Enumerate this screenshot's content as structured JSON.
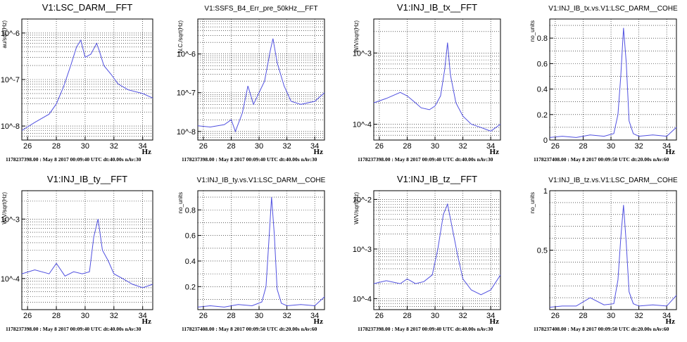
{
  "colors": {
    "trace": "#5050e0",
    "grid": "#000000",
    "frame": "#000000"
  },
  "chart_data": [
    {
      "type": "line",
      "title": "V1:LSC_DARM__FFT",
      "ylabel": "au/sqrt(Hz)",
      "xlabel": "Hz",
      "footer": "1178237398.00 : May  8 2017 00:09:40 UTC dt:40.00s nAv:30",
      "log_y": true,
      "xlim": [
        25.6,
        34.7
      ],
      "ylim": [
        5e-09,
        2e-06
      ],
      "x_ticks": [
        "26",
        "28",
        "30",
        "32",
        "34"
      ],
      "y_ticks": [
        "10^-8",
        "10^-7",
        "10^-6"
      ],
      "series": [
        {
          "x": [
            25.6,
            26.5,
            27.5,
            28.0,
            28.5,
            29.0,
            29.4,
            29.7,
            30.0,
            30.4,
            30.8,
            31.0,
            31.3,
            31.8,
            32.3,
            33.0,
            34.0,
            34.7
          ],
          "y": [
            8e-09,
            1.2e-08,
            1.8e-08,
            3e-08,
            7e-08,
            2e-07,
            5e-07,
            7e-07,
            3e-07,
            3.5e-07,
            6e-07,
            4e-07,
            2e-07,
            1.3e-07,
            8e-08,
            6e-08,
            5e-08,
            4e-08
          ]
        }
      ]
    },
    {
      "type": "line",
      "title": "V1:SSFS_B4_Err_pre_50kHz__FFT",
      "ylabel": "N.C./sqrt(Hz)",
      "xlabel": "Hz",
      "footer": "1178237398.00 : May  8 2017 00:09:40 UTC dt:40.00s nAv:30",
      "log_y": true,
      "xlim": [
        25.6,
        34.7
      ],
      "ylim": [
        6e-09,
        8e-06
      ],
      "x_ticks": [
        "26",
        "28",
        "30",
        "32",
        "34"
      ],
      "y_ticks": [
        "10^-8",
        "10^-7",
        "10^-6"
      ],
      "series": [
        {
          "x": [
            25.6,
            26.5,
            27.5,
            28.0,
            28.3,
            28.8,
            29.2,
            29.6,
            30.0,
            30.4,
            30.8,
            31.0,
            31.3,
            31.8,
            32.3,
            33.0,
            34.0,
            34.7
          ],
          "y": [
            1.4e-08,
            1.3e-08,
            1.5e-08,
            2e-08,
            1e-08,
            3e-08,
            1.5e-07,
            5e-08,
            1e-07,
            2e-07,
            1.2e-06,
            2.5e-06,
            6e-07,
            1.5e-07,
            6e-08,
            5e-08,
            6e-08,
            1e-07
          ]
        }
      ]
    },
    {
      "type": "line",
      "title": "V1:INJ_IB_tx__FFT",
      "ylabel": "W/V/sqrt(Hz)",
      "xlabel": "Hz",
      "footer": "1178237398.00 : May  8 2017 00:09:40 UTC dt:40.00s nAv:30",
      "log_y": true,
      "xlim": [
        25.6,
        34.7
      ],
      "ylim": [
        6e-05,
        0.003
      ],
      "x_ticks": [
        "26",
        "28",
        "30",
        "32",
        "34"
      ],
      "y_ticks": [
        "10^-4",
        "10^-3"
      ],
      "series": [
        {
          "x": [
            25.6,
            26.5,
            27.5,
            28.0,
            28.6,
            29.0,
            29.6,
            30.0,
            30.4,
            30.7,
            30.9,
            31.1,
            31.5,
            32.0,
            32.6,
            33.3,
            34.0,
            34.7
          ],
          "y": [
            0.0002,
            0.00023,
            0.00028,
            0.00025,
            0.0002,
            0.00017,
            0.00016,
            0.00018,
            0.00025,
            0.0006,
            0.0014,
            0.0005,
            0.0002,
            0.00013,
            0.0001,
            9e-05,
            8e-05,
            0.0001
          ]
        }
      ]
    },
    {
      "type": "line",
      "title": "V1:INJ_IB_tx.vs.V1:LSC_DARM__COHE",
      "ylabel": "no_units",
      "xlabel": "Hz",
      "footer": "1178237408.00 : May  8 2017 00:09:50 UTC dt:20.00s nAv:60",
      "log_y": false,
      "xlim": [
        25.6,
        34.7
      ],
      "ylim": [
        0,
        0.95
      ],
      "x_ticks": [
        "26",
        "28",
        "30",
        "32",
        "34"
      ],
      "y_ticks": [
        "0",
        "0.2",
        "0.4",
        "0.6",
        "0.8"
      ],
      "series": [
        {
          "x": [
            25.6,
            26.5,
            27.5,
            28.5,
            29.5,
            30.2,
            30.5,
            30.7,
            30.9,
            31.1,
            31.3,
            31.6,
            32.0,
            33.0,
            34.0,
            34.7
          ],
          "y": [
            0.02,
            0.03,
            0.02,
            0.04,
            0.03,
            0.05,
            0.2,
            0.5,
            0.88,
            0.6,
            0.15,
            0.05,
            0.03,
            0.04,
            0.03,
            0.1
          ]
        }
      ]
    },
    {
      "type": "line",
      "title": "V1:INJ_IB_ty__FFT",
      "ylabel": "W/V/sqrt(Hz)",
      "xlabel": "Hz",
      "footer": "1178237398.00 : May  8 2017 00:09:40 UTC dt:40.00s nAv:30",
      "log_y": true,
      "xlim": [
        25.6,
        34.7
      ],
      "ylim": [
        3e-05,
        0.003
      ],
      "x_ticks": [
        "26",
        "28",
        "30",
        "32",
        "34"
      ],
      "y_ticks": [
        "10^-4",
        "10^-3"
      ],
      "series": [
        {
          "x": [
            25.6,
            26.5,
            27.5,
            28.0,
            28.6,
            29.2,
            29.8,
            30.3,
            30.6,
            30.9,
            31.2,
            31.6,
            32.0,
            32.6,
            33.3,
            34.0,
            34.7
          ],
          "y": [
            0.00012,
            0.00014,
            0.00012,
            0.00018,
            0.00011,
            0.00013,
            0.00012,
            0.00013,
            0.0005,
            0.001,
            0.0003,
            0.0002,
            0.00012,
            0.0001,
            8e-05,
            7e-05,
            8e-05
          ]
        }
      ]
    },
    {
      "type": "line",
      "title": "V1:INJ_IB_ty.vs.V1:LSC_DARM__COHE",
      "ylabel": "no_units",
      "xlabel": "Hz",
      "footer": "1178237408.00 : May  8 2017 00:09:50 UTC dt:20.00s nAv:60",
      "log_y": false,
      "xlim": [
        25.6,
        34.7
      ],
      "ylim": [
        0.02,
        0.95
      ],
      "x_ticks": [
        "26",
        "28",
        "30",
        "32",
        "34"
      ],
      "y_ticks": [
        "0.2",
        "0.4",
        "0.6",
        "0.8"
      ],
      "series": [
        {
          "x": [
            25.6,
            26.5,
            27.5,
            28.5,
            29.5,
            30.2,
            30.5,
            30.7,
            30.9,
            31.1,
            31.3,
            31.6,
            32.0,
            33.0,
            34.0,
            34.7
          ],
          "y": [
            0.04,
            0.05,
            0.04,
            0.06,
            0.05,
            0.08,
            0.2,
            0.55,
            0.9,
            0.6,
            0.18,
            0.07,
            0.05,
            0.06,
            0.05,
            0.12
          ]
        }
      ]
    },
    {
      "type": "line",
      "title": "V1:INJ_IB_tz__FFT",
      "ylabel": "W/V/sqrt(Hz)",
      "xlabel": "Hz",
      "footer": "1178237398.00 : May  8 2017 00:09:40 UTC dt:40.00s nAv:30",
      "log_y": true,
      "xlim": [
        25.6,
        34.7
      ],
      "ylim": [
        6e-05,
        0.015
      ],
      "x_ticks": [
        "26",
        "28",
        "30",
        "32",
        "34"
      ],
      "y_ticks": [
        "10^-4",
        "10^-3",
        "10^-2"
      ],
      "series": [
        {
          "x": [
            25.6,
            26.5,
            27.5,
            28.0,
            28.6,
            29.2,
            29.8,
            30.2,
            30.6,
            30.9,
            31.2,
            31.6,
            32.0,
            32.6,
            33.3,
            34.0,
            34.7
          ],
          "y": [
            0.0002,
            0.00023,
            0.0002,
            0.00025,
            0.0002,
            0.00022,
            0.0003,
            0.001,
            0.005,
            0.008,
            0.003,
            0.0008,
            0.00025,
            0.00015,
            0.00012,
            0.00015,
            0.0003
          ]
        }
      ]
    },
    {
      "type": "line",
      "title": "V1:INJ_IB_tz.vs.V1:LSC_DARM__COHE",
      "ylabel": "no_units",
      "xlabel": "Hz",
      "footer": "1178237408.00 : May  8 2017 00:09:50 UTC dt:20.00s nAv:60",
      "log_y": false,
      "xlim": [
        25.6,
        34.7
      ],
      "ylim": [
        0,
        1.0
      ],
      "x_ticks": [
        "26",
        "28",
        "30",
        "32",
        "34"
      ],
      "y_ticks": [
        "0.5",
        "1"
      ],
      "series": [
        {
          "x": [
            25.6,
            26.5,
            27.5,
            28.5,
            29.5,
            30.2,
            30.5,
            30.7,
            30.9,
            31.1,
            31.3,
            31.6,
            32.0,
            33.0,
            34.0,
            34.7
          ],
          "y": [
            0.02,
            0.03,
            0.03,
            0.1,
            0.04,
            0.05,
            0.25,
            0.6,
            0.88,
            0.55,
            0.15,
            0.05,
            0.03,
            0.04,
            0.03,
            0.12
          ]
        }
      ]
    }
  ]
}
